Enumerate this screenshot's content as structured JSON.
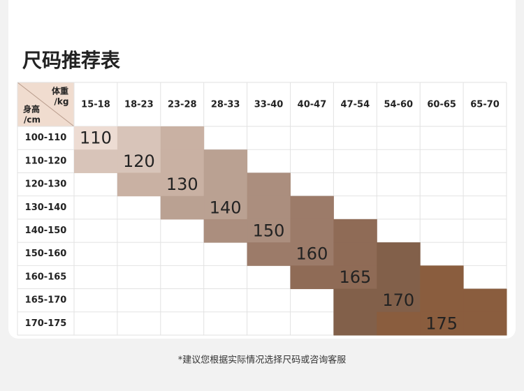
{
  "title": "尺码推荐表",
  "table": {
    "corner": {
      "weight": "体重",
      "weight_unit": "/kg",
      "height": "身高",
      "height_unit": "/cm"
    },
    "columns": [
      "15-18",
      "18-23",
      "23-28",
      "28-33",
      "33-40",
      "40-47",
      "47-54",
      "54-60",
      "60-65",
      "65-70"
    ],
    "rows": [
      {
        "height": "100-110",
        "size": "110"
      },
      {
        "height": "110-120",
        "size": "120"
      },
      {
        "height": "120-130",
        "size": "130"
      },
      {
        "height": "130-140",
        "size": "140"
      },
      {
        "height": "140-150",
        "size": "150"
      },
      {
        "height": "150-160",
        "size": "160"
      },
      {
        "height": "160-165",
        "size": "165"
      },
      {
        "height": "165-170",
        "size": "170"
      },
      {
        "height": "170-175",
        "size": "175"
      }
    ]
  },
  "note": "*建议您根据实际情况选择尺码或咨询客服"
}
